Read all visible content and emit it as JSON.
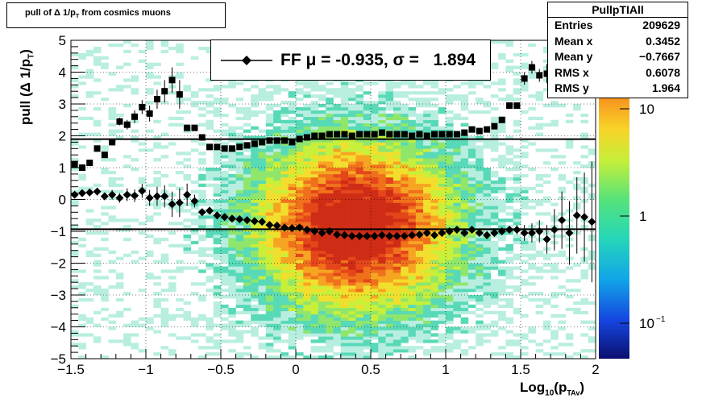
{
  "title": {
    "text": "pull of Δ 1/p",
    "sub": "T",
    "suffix": " from cosmics muons"
  },
  "stats": {
    "name": "PullpTIAll",
    "rows": [
      {
        "label": "Entries",
        "value": "209629"
      },
      {
        "label": "Mean x",
        "value": "0.3452"
      },
      {
        "label": "Mean y",
        "value": "−0.7667"
      },
      {
        "label": "RMS x",
        "value": "0.6078"
      },
      {
        "label": "RMS y",
        "value": "1.964"
      }
    ]
  },
  "legend": {
    "label": "FF μ = -0.935, σ =   1.894"
  },
  "ylabel": {
    "main": "pull (Δ 1/p",
    "sub": "T",
    "end": ")"
  },
  "xlabel": {
    "main": "Log",
    "sub1": "10",
    "mid": "(p",
    "sub2": "TAv",
    "end": ")"
  },
  "colors": {
    "black": "#000000",
    "grid": "#000000"
  },
  "chart_data": {
    "type": "heatmap",
    "x_ticks": [
      "−1.5",
      "−1",
      "−0.5",
      "0",
      "0.5",
      "1",
      "1.5",
      "2"
    ],
    "y_ticks": [
      "−5",
      "−4",
      "−3",
      "−2",
      "−1",
      "0",
      "1",
      "2",
      "3",
      "4",
      "5"
    ],
    "xlim": [
      -1.5,
      2.0
    ],
    "ylim": [
      -5,
      5
    ],
    "z_ticks": [
      "10",
      "1",
      "10^-1"
    ],
    "zscale": "log",
    "grid": true,
    "hlines": [
      -0.935,
      1.894
    ],
    "series": [
      {
        "name": "mean",
        "marker": "diamond",
        "x": [
          -1.475,
          -1.425,
          -1.375,
          -1.325,
          -1.275,
          -1.225,
          -1.175,
          -1.125,
          -1.075,
          -1.025,
          -0.975,
          -0.925,
          -0.875,
          -0.825,
          -0.775,
          -0.725,
          -0.675,
          -0.625,
          -0.575,
          -0.525,
          -0.475,
          -0.425,
          -0.375,
          -0.325,
          -0.275,
          -0.225,
          -0.175,
          -0.125,
          -0.075,
          -0.025,
          0.025,
          0.075,
          0.125,
          0.175,
          0.225,
          0.275,
          0.325,
          0.375,
          0.425,
          0.475,
          0.525,
          0.575,
          0.625,
          0.675,
          0.725,
          0.775,
          0.825,
          0.875,
          0.925,
          0.975,
          1.025,
          1.075,
          1.125,
          1.175,
          1.225,
          1.275,
          1.325,
          1.375,
          1.425,
          1.475,
          1.525,
          1.575,
          1.625,
          1.675,
          1.725,
          1.775,
          1.825,
          1.875,
          1.925,
          1.975
        ],
        "y": [
          0.15,
          0.2,
          0.22,
          0.25,
          0.1,
          0.15,
          0.05,
          0.15,
          0.12,
          0.27,
          0.05,
          0.1,
          0.1,
          -0.15,
          -0.1,
          0.15,
          -0.05,
          -0.4,
          -0.35,
          -0.5,
          -0.55,
          -0.6,
          -0.62,
          -0.65,
          -0.68,
          -0.7,
          -0.8,
          -0.82,
          -0.88,
          -0.9,
          -0.88,
          -0.95,
          -1.0,
          -1.05,
          -1.0,
          -1.1,
          -1.12,
          -1.15,
          -1.15,
          -1.15,
          -1.15,
          -1.12,
          -1.15,
          -1.15,
          -1.15,
          -1.12,
          -1.1,
          -1.05,
          -1.12,
          -1.05,
          -1.0,
          -0.95,
          -1.05,
          -0.95,
          -1.05,
          -1.12,
          -1.05,
          -1.0,
          -0.95,
          -0.95,
          -1.05,
          -1.05,
          -1.0,
          -1.25,
          -0.95,
          -0.65,
          -1.05,
          -0.5,
          -0.55,
          -0.7
        ],
        "err": [
          0.1,
          0.1,
          0.12,
          0.12,
          0.12,
          0.15,
          0.15,
          0.2,
          0.2,
          0.22,
          0.25,
          0.3,
          0.35,
          0.4,
          0.45,
          0.35,
          0.2,
          0.1,
          0.05,
          0.05,
          0.05,
          0.05,
          0.05,
          0.05,
          0.05,
          0.05,
          0.05,
          0.05,
          0.05,
          0.05,
          0.05,
          0.05,
          0.05,
          0.05,
          0.05,
          0.05,
          0.05,
          0.05,
          0.05,
          0.05,
          0.05,
          0.05,
          0.05,
          0.05,
          0.05,
          0.05,
          0.05,
          0.05,
          0.05,
          0.05,
          0.05,
          0.05,
          0.05,
          0.05,
          0.05,
          0.05,
          0.05,
          0.1,
          0.1,
          0.15,
          0.25,
          0.3,
          0.35,
          0.45,
          0.65,
          0.9,
          1.0,
          1.2,
          1.4,
          1.9
        ]
      },
      {
        "name": "sigma",
        "marker": "square",
        "x": [
          -1.475,
          -1.425,
          -1.375,
          -1.325,
          -1.275,
          -1.225,
          -1.175,
          -1.125,
          -1.075,
          -1.025,
          -0.975,
          -0.925,
          -0.875,
          -0.825,
          -0.775,
          -0.725,
          -0.675,
          -0.625,
          -0.575,
          -0.525,
          -0.475,
          -0.425,
          -0.375,
          -0.325,
          -0.275,
          -0.225,
          -0.175,
          -0.125,
          -0.075,
          -0.025,
          0.025,
          0.075,
          0.125,
          0.175,
          0.225,
          0.275,
          0.325,
          0.375,
          0.425,
          0.475,
          0.525,
          0.575,
          0.625,
          0.675,
          0.725,
          0.775,
          0.825,
          0.875,
          0.925,
          0.975,
          1.025,
          1.075,
          1.125,
          1.175,
          1.225,
          1.275,
          1.325,
          1.375,
          1.425,
          1.475,
          1.525,
          1.575,
          1.625,
          1.675,
          1.725
        ],
        "y": [
          1.1,
          1.0,
          1.15,
          1.6,
          1.4,
          1.8,
          2.45,
          2.35,
          2.6,
          2.9,
          2.7,
          3.15,
          3.4,
          3.75,
          3.3,
          2.25,
          2.25,
          1.95,
          1.65,
          1.65,
          1.6,
          1.6,
          1.65,
          1.7,
          1.75,
          1.8,
          1.85,
          1.85,
          1.85,
          1.8,
          1.9,
          1.95,
          2.0,
          2.0,
          2.05,
          2.05,
          2.05,
          2.0,
          2.05,
          2.05,
          2.05,
          2.1,
          2.05,
          2.05,
          2.05,
          2.0,
          2.05,
          2.0,
          2.05,
          2.05,
          2.05,
          2.05,
          2.1,
          2.2,
          2.15,
          2.2,
          2.3,
          2.5,
          2.95,
          2.95,
          3.8,
          4.15,
          3.9,
          3.95,
          4.6
        ],
        "err": [
          0.1,
          0.1,
          0.1,
          0.1,
          0.1,
          0.1,
          0.12,
          0.15,
          0.2,
          0.22,
          0.25,
          0.3,
          0.35,
          0.4,
          0.45,
          0.1,
          0.05,
          0.05,
          0.05,
          0.05,
          0.05,
          0.05,
          0.05,
          0.05,
          0.05,
          0.05,
          0.05,
          0.05,
          0.05,
          0.05,
          0.05,
          0.05,
          0.05,
          0.05,
          0.05,
          0.05,
          0.05,
          0.05,
          0.05,
          0.05,
          0.05,
          0.05,
          0.05,
          0.05,
          0.05,
          0.05,
          0.05,
          0.05,
          0.05,
          0.05,
          0.05,
          0.05,
          0.05,
          0.05,
          0.05,
          0.05,
          0.05,
          0.05,
          0.1,
          0.1,
          0.2,
          0.2,
          0.2,
          0.3,
          0.4
        ]
      }
    ]
  }
}
